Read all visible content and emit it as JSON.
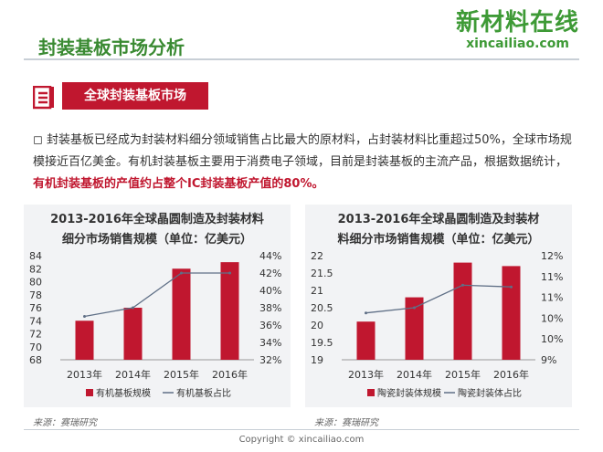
{
  "page": {
    "title": "封装基板市场分析",
    "logo_cn": "新材料在线",
    "logo_en": "xincailiao.com",
    "section_label": "全球封装基板市场",
    "paragraph_main": "封装基板已经成为封装材料细分领域销售占比最大的原材料，占封装材料比重超过50%，全球市场规模接近百亿美金。有机封装基板主要用于消费电子领域，目前是封装基板的主流产品，根据数据统计，",
    "paragraph_highlight": "有机封装基板的产值约占整个IC封装基板产值的80%。",
    "copyright": "Copyright © xincailiao.com",
    "colors": {
      "accent": "#c0172f",
      "brand_green": "#3e9a36",
      "line": "#5f6f86"
    }
  },
  "chart_data": [
    {
      "type": "bar",
      "title_line1": "2013-2016年全球晶圆制造及封装材料",
      "title_line2": "细分市场销售规模（单位：亿美元）",
      "categories": [
        "2013年",
        "2014年",
        "2015年",
        "2016年"
      ],
      "series": [
        {
          "name": "有机基板规模",
          "type": "bar",
          "axis": "left",
          "values": [
            74,
            76,
            82,
            83
          ]
        },
        {
          "name": "有机基板占比",
          "type": "line",
          "axis": "right",
          "values": [
            0.37,
            0.38,
            0.42,
            0.42
          ]
        }
      ],
      "y_left": {
        "min": 68,
        "max": 84,
        "ticks": [
          "84",
          "82",
          "80",
          "78",
          "76",
          "74",
          "72",
          "70",
          "68"
        ]
      },
      "y_right": {
        "min": 0.32,
        "max": 0.44,
        "ticks": [
          "44%",
          "42%",
          "40%",
          "38%",
          "36%",
          "34%",
          "32%"
        ]
      },
      "source": "来源：赛瑞研究",
      "legend_position": "bottom"
    },
    {
      "type": "bar",
      "title_line1": "2013-2016年全球晶圆制造及封装材",
      "title_line2": "料细分市场销售规模（单位：亿美元）",
      "categories": [
        "2013年",
        "2014年",
        "2015年",
        "2016年"
      ],
      "series": [
        {
          "name": "陶瓷封装体规模",
          "type": "bar",
          "axis": "left",
          "values": [
            20.1,
            20.8,
            21.8,
            21.7
          ]
        },
        {
          "name": "陶瓷封装体占比",
          "type": "line",
          "axis": "right",
          "values": [
            0.1035,
            0.105,
            0.1115,
            0.111
          ]
        }
      ],
      "y_left": {
        "min": 19,
        "max": 22,
        "ticks": [
          "22",
          "21.5",
          "21",
          "20.5",
          "20",
          "19.5",
          "19"
        ]
      },
      "y_right": {
        "min": 0.09,
        "max": 0.12,
        "ticks": [
          "12%",
          "11%",
          "11%",
          "10%",
          "10%",
          "9%"
        ]
      },
      "source": "来源：赛瑞研究",
      "legend_position": "bottom"
    }
  ]
}
